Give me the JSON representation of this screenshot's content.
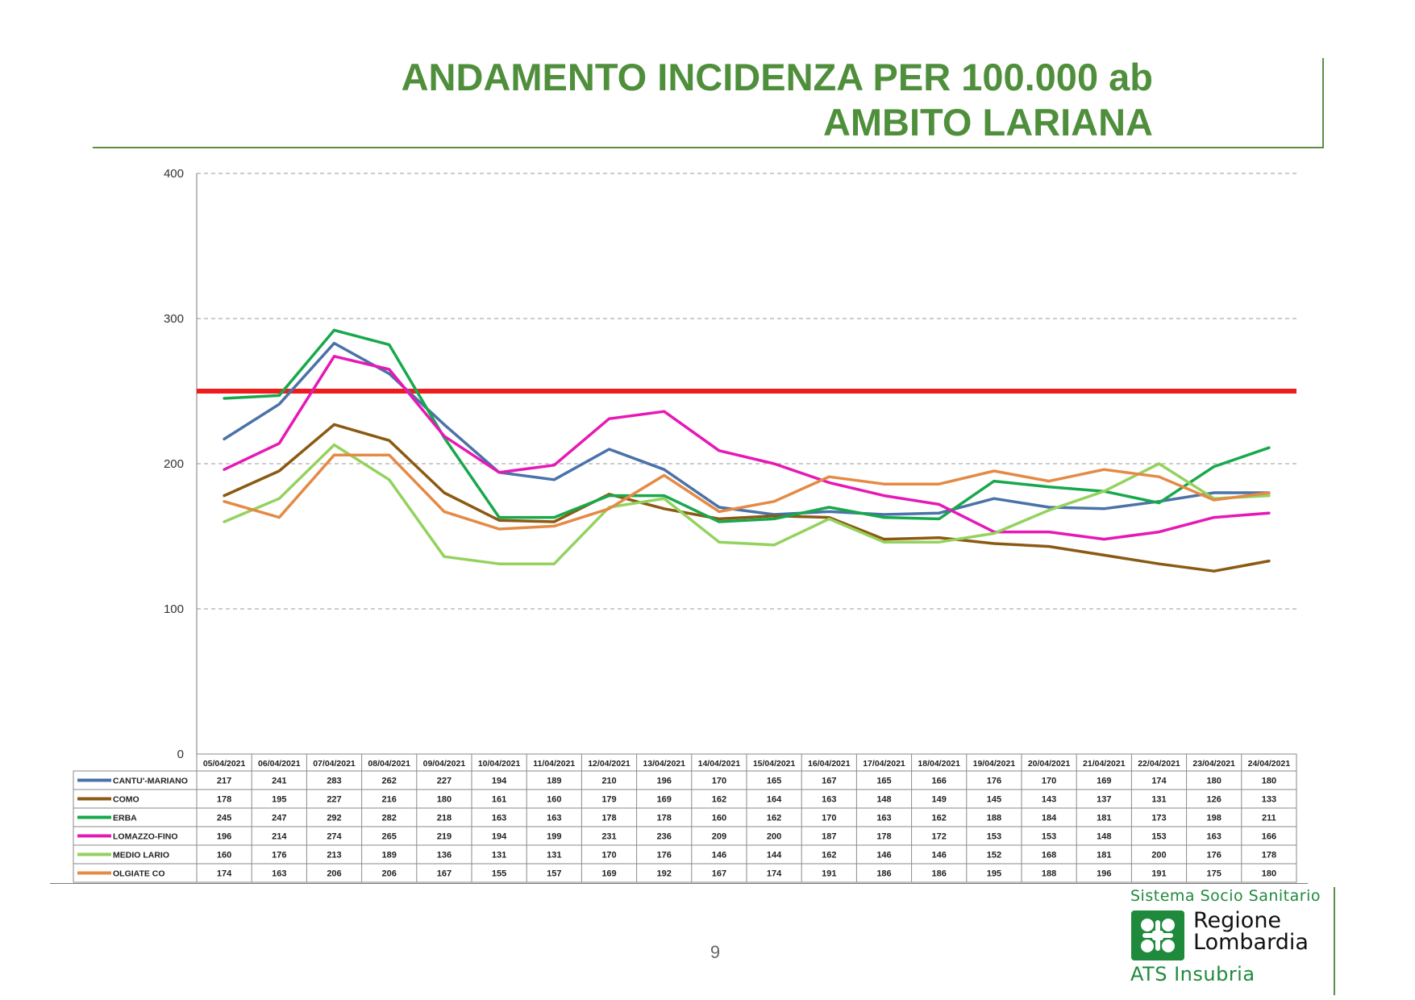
{
  "header": {
    "title_line1": "ANDAMENTO INCIDENZA PER 100.000 ab",
    "title_line2": "AMBITO LARIANA"
  },
  "chart_data": {
    "type": "line",
    "ylim": [
      0,
      400
    ],
    "yticks": [
      0,
      100,
      200,
      300,
      400
    ],
    "grid": true,
    "legend": "table-below",
    "threshold": {
      "value": 250,
      "color": "#ee1c1c"
    },
    "categories": [
      "05/04/2021",
      "06/04/2021",
      "07/04/2021",
      "08/04/2021",
      "09/04/2021",
      "10/04/2021",
      "11/04/2021",
      "12/04/2021",
      "13/04/2021",
      "14/04/2021",
      "15/04/2021",
      "16/04/2021",
      "17/04/2021",
      "18/04/2021",
      "19/04/2021",
      "20/04/2021",
      "21/04/2021",
      "22/04/2021",
      "23/04/2021",
      "24/04/2021"
    ],
    "series": [
      {
        "name": "CANTU'-MARIANO",
        "color": "#4a72a8",
        "values": [
          217,
          241,
          283,
          262,
          227,
          194,
          189,
          210,
          196,
          170,
          165,
          167,
          165,
          166,
          176,
          170,
          169,
          174,
          180,
          180
        ]
      },
      {
        "name": "COMO",
        "color": "#8b5a12",
        "values": [
          178,
          195,
          227,
          216,
          180,
          161,
          160,
          179,
          169,
          162,
          164,
          163,
          148,
          149,
          145,
          143,
          137,
          131,
          126,
          133
        ]
      },
      {
        "name": "ERBA",
        "color": "#18a84c",
        "values": [
          245,
          247,
          292,
          282,
          218,
          163,
          163,
          178,
          178,
          160,
          162,
          170,
          163,
          162,
          188,
          184,
          181,
          173,
          198,
          211
        ]
      },
      {
        "name": "LOMAZZO-FINO",
        "color": "#e619b5",
        "values": [
          196,
          214,
          274,
          265,
          219,
          194,
          199,
          231,
          236,
          209,
          200,
          187,
          178,
          172,
          153,
          153,
          148,
          153,
          163,
          166
        ]
      },
      {
        "name": "MEDIO LARIO",
        "color": "#94d25e",
        "values": [
          160,
          176,
          213,
          189,
          136,
          131,
          131,
          170,
          176,
          146,
          144,
          162,
          146,
          146,
          152,
          168,
          181,
          200,
          176,
          178
        ]
      },
      {
        "name": "OLGIATE CO",
        "color": "#e48a45",
        "values": [
          174,
          163,
          206,
          206,
          167,
          155,
          157,
          169,
          192,
          167,
          174,
          191,
          186,
          186,
          195,
          188,
          196,
          191,
          175,
          180
        ]
      }
    ]
  },
  "footer": {
    "page_number": "9",
    "system_name": "Sistema Socio Sanitario",
    "region_line1": "Regione",
    "region_line2": "Lombardia",
    "agency": "ATS Insubria"
  }
}
